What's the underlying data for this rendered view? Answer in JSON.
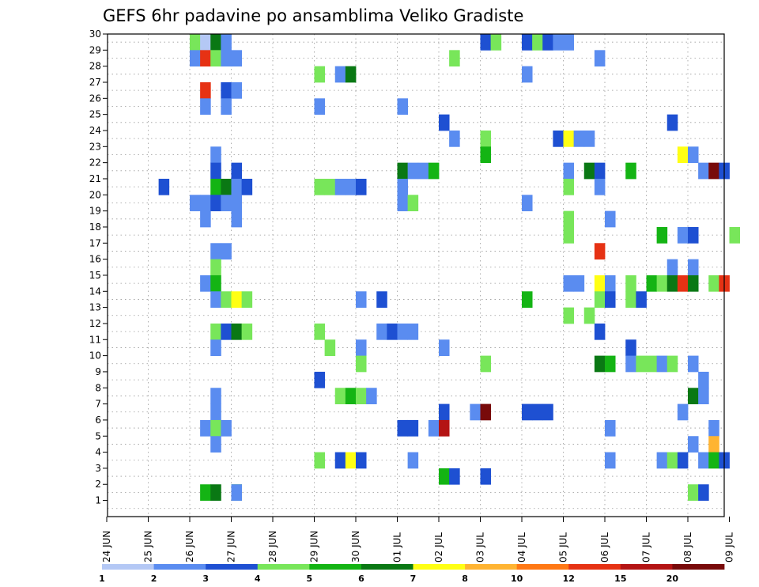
{
  "chart_data": {
    "type": "heatmap",
    "title": "GEFS 6hr padavine po ansamblima Veliko Gradiste",
    "y_members": [
      1,
      30
    ],
    "x_ticks": [
      "24 JUN",
      "25 JUN",
      "26 JUN",
      "27 JUN",
      "28 JUN",
      "29 JUN",
      "30 JUN",
      "01 JUL",
      "02 JUL",
      "03 JUL",
      "04 JUL",
      "05 JUL",
      "06 JUL",
      "07 JUL",
      "08 JUL",
      "09 JUL"
    ],
    "x_step": "6h",
    "grid": "dotted",
    "legend": {
      "placement": "bottom",
      "colors": [
        "#b4c8f5",
        "#5a8cf0",
        "#1e50d2",
        "#78e65a",
        "#14b414",
        "#0a7814",
        "#ffff14",
        "#ffb432",
        "#ff7814",
        "#e63214",
        "#b41414",
        "#780a0a"
      ],
      "labels": [
        "1",
        "2",
        "3",
        "4",
        "5",
        "6",
        "7",
        "8",
        "10",
        "12",
        "15",
        "20"
      ]
    },
    "cells": [
      [
        30,
        "26 JUN",
        0,
        3
      ],
      [
        30,
        "26 JUN",
        1,
        0
      ],
      [
        30,
        "26 JUN",
        2,
        5
      ],
      [
        30,
        "26 JUN",
        3,
        1
      ],
      [
        30,
        "03 JUL",
        0,
        2
      ],
      [
        30,
        "03 JUL",
        1,
        3
      ],
      [
        30,
        "04 JUL",
        0,
        2
      ],
      [
        30,
        "04 JUL",
        1,
        3
      ],
      [
        30,
        "04 JUL",
        2,
        2
      ],
      [
        30,
        "04 JUL",
        3,
        1
      ],
      [
        30,
        "05 JUL",
        0,
        1
      ],
      [
        29,
        "26 JUN",
        0,
        1
      ],
      [
        29,
        "26 JUN",
        1,
        9
      ],
      [
        29,
        "26 JUN",
        2,
        3
      ],
      [
        29,
        "26 JUN",
        3,
        1
      ],
      [
        29,
        "26 JUN",
        4,
        1
      ],
      [
        29,
        "02 JUL",
        1,
        3
      ],
      [
        29,
        "05 JUL",
        3,
        1
      ],
      [
        28,
        "29 JUN",
        0,
        3
      ],
      [
        28,
        "29 JUN",
        2,
        1
      ],
      [
        28,
        "29 JUN",
        3,
        5
      ],
      [
        28,
        "04 JUL",
        0,
        1
      ],
      [
        27,
        "26 JUN",
        1,
        9
      ],
      [
        27,
        "26 JUN",
        3,
        2
      ],
      [
        27,
        "26 JUN",
        4,
        1
      ],
      [
        26,
        "26 JUN",
        1,
        1
      ],
      [
        26,
        "26 JUN",
        3,
        1
      ],
      [
        26,
        "29 JUN",
        0,
        1
      ],
      [
        26,
        "01 JUL",
        0,
        1
      ],
      [
        25,
        "02 JUL",
        0,
        2
      ],
      [
        25,
        "07 JUL",
        2,
        2
      ],
      [
        24,
        "02 JUL",
        1,
        1
      ],
      [
        24,
        "03 JUL",
        0,
        3
      ],
      [
        24,
        "04 JUL",
        3,
        2
      ],
      [
        24,
        "05 JUL",
        0,
        6
      ],
      [
        24,
        "05 JUL",
        1,
        1
      ],
      [
        24,
        "05 JUL",
        2,
        1
      ],
      [
        23,
        "26 JUN",
        2,
        1
      ],
      [
        23,
        "03 JUL",
        0,
        4
      ],
      [
        23,
        "07 JUL",
        3,
        6
      ],
      [
        23,
        "08 JUL",
        0,
        1
      ],
      [
        22,
        "26 JUN",
        2,
        2
      ],
      [
        22,
        "26 JUN",
        4,
        2
      ],
      [
        22,
        "01 JUL",
        0,
        5
      ],
      [
        22,
        "01 JUL",
        1,
        1
      ],
      [
        22,
        "01 JUL",
        2,
        1
      ],
      [
        22,
        "01 JUL",
        3,
        4
      ],
      [
        22,
        "05 JUL",
        0,
        1
      ],
      [
        22,
        "05 JUL",
        2,
        5
      ],
      [
        22,
        "05 JUL",
        3,
        2
      ],
      [
        22,
        "06 JUL",
        2,
        4
      ],
      [
        22,
        "08 JUL",
        1,
        1
      ],
      [
        22,
        "08 JUL",
        2,
        11
      ],
      [
        22,
        "08 JUL",
        3,
        2
      ],
      [
        21,
        "25 JUN",
        1,
        2
      ],
      [
        21,
        "26 JUN",
        2,
        4
      ],
      [
        21,
        "26 JUN",
        3,
        5
      ],
      [
        21,
        "26 JUN",
        4,
        1
      ],
      [
        21,
        "26 JUN",
        5,
        2
      ],
      [
        21,
        "29 JUN",
        0,
        3
      ],
      [
        21,
        "29 JUN",
        1,
        3
      ],
      [
        21,
        "29 JUN",
        2,
        1
      ],
      [
        21,
        "29 JUN",
        3,
        1
      ],
      [
        21,
        "30 JUN",
        0,
        2
      ],
      [
        21,
        "01 JUL",
        0,
        1
      ],
      [
        21,
        "05 JUL",
        0,
        3
      ],
      [
        21,
        "05 JUL",
        3,
        1
      ],
      [
        20,
        "26 JUN",
        0,
        1
      ],
      [
        20,
        "26 JUN",
        1,
        1
      ],
      [
        20,
        "26 JUN",
        2,
        2
      ],
      [
        20,
        "26 JUN",
        3,
        1
      ],
      [
        20,
        "26 JUN",
        4,
        1
      ],
      [
        20,
        "01 JUL",
        0,
        1
      ],
      [
        20,
        "01 JUL",
        1,
        3
      ],
      [
        20,
        "04 JUL",
        0,
        1
      ],
      [
        19,
        "26 JUN",
        1,
        1
      ],
      [
        19,
        "26 JUN",
        4,
        1
      ],
      [
        19,
        "05 JUL",
        0,
        3
      ],
      [
        19,
        "06 JUL",
        0,
        1
      ],
      [
        18,
        "05 JUL",
        0,
        3
      ],
      [
        18,
        "07 JUL",
        1,
        4
      ],
      [
        18,
        "07 JUL",
        3,
        1
      ],
      [
        18,
        "08 JUL",
        0,
        2
      ],
      [
        18,
        "09 JUL",
        0,
        3
      ],
      [
        17,
        "26 JUN",
        2,
        1
      ],
      [
        17,
        "26 JUN",
        3,
        1
      ],
      [
        17,
        "05 JUL",
        3,
        9
      ],
      [
        16,
        "26 JUN",
        2,
        3
      ],
      [
        16,
        "07 JUL",
        2,
        1
      ],
      [
        16,
        "08 JUL",
        0,
        1
      ],
      [
        15,
        "26 JUN",
        1,
        1
      ],
      [
        15,
        "26 JUN",
        2,
        4
      ],
      [
        15,
        "05 JUL",
        0,
        1
      ],
      [
        15,
        "05 JUL",
        1,
        1
      ],
      [
        15,
        "05 JUL",
        3,
        6
      ],
      [
        15,
        "06 JUL",
        0,
        1
      ],
      [
        15,
        "06 JUL",
        2,
        3
      ],
      [
        15,
        "07 JUL",
        0,
        4
      ],
      [
        15,
        "07 JUL",
        1,
        3
      ],
      [
        15,
        "07 JUL",
        2,
        5
      ],
      [
        15,
        "07 JUL",
        3,
        9
      ],
      [
        15,
        "08 JUL",
        0,
        5
      ],
      [
        15,
        "08 JUL",
        2,
        3
      ],
      [
        15,
        "08 JUL",
        3,
        9
      ],
      [
        14,
        "26 JUN",
        2,
        1
      ],
      [
        14,
        "26 JUN",
        3,
        3
      ],
      [
        14,
        "26 JUN",
        4,
        6
      ],
      [
        14,
        "26 JUN",
        5,
        3
      ],
      [
        14,
        "30 JUN",
        0,
        1
      ],
      [
        14,
        "30 JUN",
        2,
        2
      ],
      [
        14,
        "04 JUL",
        0,
        4
      ],
      [
        14,
        "05 JUL",
        3,
        3
      ],
      [
        14,
        "06 JUL",
        0,
        2
      ],
      [
        14,
        "06 JUL",
        2,
        3
      ],
      [
        14,
        "06 JUL",
        3,
        2
      ],
      [
        13,
        "05 JUL",
        0,
        3
      ],
      [
        13,
        "05 JUL",
        2,
        3
      ],
      [
        12,
        "26 JUN",
        2,
        3
      ],
      [
        12,
        "26 JUN",
        3,
        2
      ],
      [
        12,
        "26 JUN",
        4,
        5
      ],
      [
        12,
        "26 JUN",
        5,
        3
      ],
      [
        12,
        "29 JUN",
        0,
        3
      ],
      [
        12,
        "30 JUN",
        2,
        1
      ],
      [
        12,
        "30 JUN",
        3,
        2
      ],
      [
        12,
        "01 JUL",
        0,
        1
      ],
      [
        12,
        "01 JUL",
        1,
        1
      ],
      [
        12,
        "05 JUL",
        3,
        2
      ],
      [
        11,
        "26 JUN",
        2,
        1
      ],
      [
        11,
        "29 JUN",
        1,
        3
      ],
      [
        11,
        "30 JUN",
        0,
        1
      ],
      [
        11,
        "02 JUL",
        0,
        1
      ],
      [
        11,
        "06 JUL",
        2,
        2
      ],
      [
        10,
        "30 JUN",
        0,
        3
      ],
      [
        10,
        "03 JUL",
        0,
        3
      ],
      [
        10,
        "05 JUL",
        3,
        5
      ],
      [
        10,
        "06 JUL",
        0,
        4
      ],
      [
        10,
        "06 JUL",
        2,
        1
      ],
      [
        10,
        "06 JUL",
        3,
        3
      ],
      [
        10,
        "07 JUL",
        0,
        3
      ],
      [
        10,
        "07 JUL",
        1,
        1
      ],
      [
        10,
        "07 JUL",
        2,
        3
      ],
      [
        10,
        "08 JUL",
        0,
        1
      ],
      [
        9,
        "29 JUN",
        0,
        2
      ],
      [
        9,
        "08 JUL",
        1,
        1
      ],
      [
        8,
        "26 JUN",
        2,
        1
      ],
      [
        8,
        "29 JUN",
        2,
        3
      ],
      [
        8,
        "29 JUN",
        3,
        4
      ],
      [
        8,
        "30 JUN",
        0,
        3
      ],
      [
        8,
        "30 JUN",
        1,
        1
      ],
      [
        8,
        "08 JUL",
        0,
        5
      ],
      [
        8,
        "08 JUL",
        1,
        1
      ],
      [
        7,
        "26 JUN",
        2,
        1
      ],
      [
        7,
        "02 JUL",
        0,
        2
      ],
      [
        7,
        "02 JUL",
        3,
        1
      ],
      [
        7,
        "03 JUL",
        0,
        11
      ],
      [
        7,
        "04 JUL",
        0,
        2
      ],
      [
        7,
        "04 JUL",
        1,
        2
      ],
      [
        7,
        "04 JUL",
        2,
        2
      ],
      [
        7,
        "07 JUL",
        3,
        1
      ],
      [
        6,
        "26 JUN",
        1,
        1
      ],
      [
        6,
        "26 JUN",
        2,
        3
      ],
      [
        6,
        "26 JUN",
        3,
        1
      ],
      [
        6,
        "01 JUL",
        0,
        2
      ],
      [
        6,
        "01 JUL",
        1,
        2
      ],
      [
        6,
        "01 JUL",
        3,
        1
      ],
      [
        6,
        "02 JUL",
        0,
        10
      ],
      [
        6,
        "06 JUL",
        0,
        1
      ],
      [
        6,
        "08 JUL",
        2,
        1
      ],
      [
        5,
        "26 JUN",
        2,
        1
      ],
      [
        5,
        "08 JUL",
        0,
        1
      ],
      [
        5,
        "08 JUL",
        2,
        7
      ],
      [
        4,
        "29 JUN",
        0,
        3
      ],
      [
        4,
        "29 JUN",
        2,
        2
      ],
      [
        4,
        "29 JUN",
        3,
        6
      ],
      [
        4,
        "29 JUN",
        4,
        2
      ],
      [
        4,
        "01 JUL",
        1,
        1
      ],
      [
        4,
        "06 JUL",
        0,
        1
      ],
      [
        4,
        "07 JUL",
        1,
        1
      ],
      [
        4,
        "07 JUL",
        2,
        3
      ],
      [
        4,
        "07 JUL",
        3,
        2
      ],
      [
        4,
        "08 JUL",
        1,
        1
      ],
      [
        4,
        "08 JUL",
        2,
        4
      ],
      [
        4,
        "08 JUL",
        3,
        2
      ],
      [
        3,
        "02 JUL",
        0,
        4
      ],
      [
        3,
        "02 JUL",
        1,
        2
      ],
      [
        3,
        "03 JUL",
        0,
        2
      ],
      [
        2,
        "26 JUN",
        1,
        4
      ],
      [
        2,
        "26 JUN",
        2,
        5
      ],
      [
        2,
        "26 JUN",
        4,
        4
      ],
      [
        2,
        "27 JUN",
        0,
        1
      ],
      [
        2,
        "08 JUL",
        0,
        3
      ],
      [
        2,
        "08 JUL",
        1,
        2
      ]
    ]
  }
}
